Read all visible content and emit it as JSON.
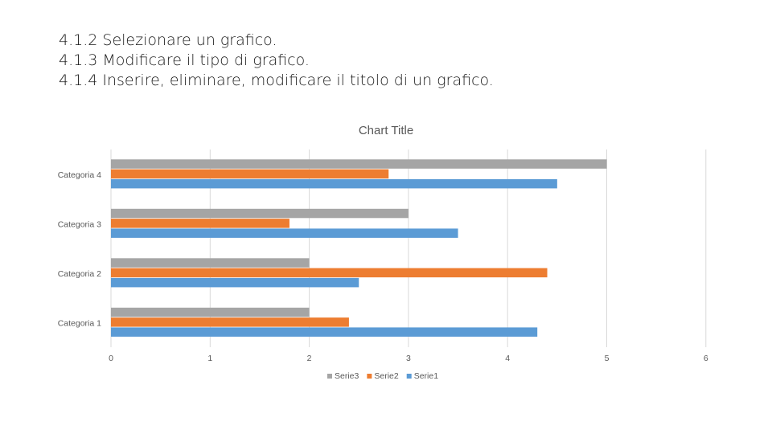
{
  "slide": {
    "lines": [
      "4.1.2 Selezionare un grafico.",
      "4.1.3 Modificare il tipo di grafico.",
      "4.1.4 Inserire, eliminare, modificare il titolo di un grafico."
    ]
  },
  "chart_data": {
    "type": "bar",
    "orientation": "horizontal",
    "title": "Chart Title",
    "categories": [
      "Categoria 1",
      "Categoria 2",
      "Categoria 3",
      "Categoria 4"
    ],
    "series": [
      {
        "name": "Serie3",
        "values": [
          2,
          2,
          3,
          5
        ],
        "color": "#a5a5a5"
      },
      {
        "name": "Serie2",
        "values": [
          2.4,
          4.4,
          1.8,
          2.8
        ],
        "color": "#ed7d31"
      },
      {
        "name": "Serie1",
        "values": [
          4.3,
          2.5,
          3.5,
          4.5
        ],
        "color": "#5b9bd5"
      }
    ],
    "xlim": [
      0,
      6
    ],
    "x_ticks": [
      "0",
      "1",
      "2",
      "3",
      "4",
      "5",
      "6"
    ],
    "grid": true,
    "legend_position": "bottom"
  }
}
